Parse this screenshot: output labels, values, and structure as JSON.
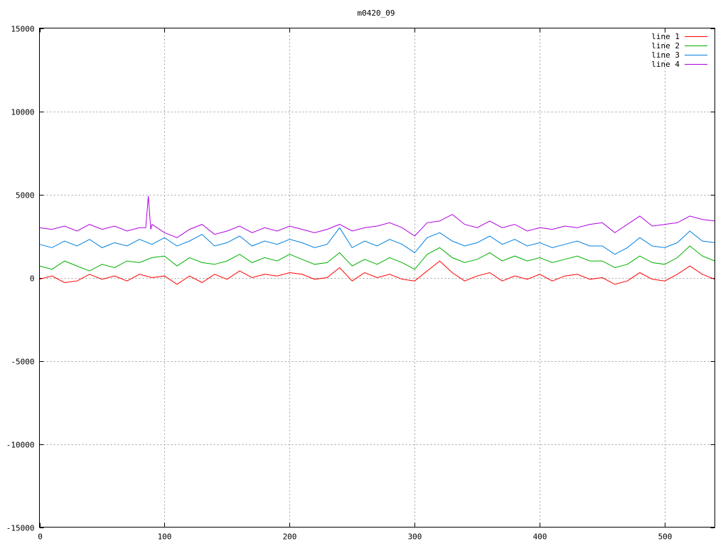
{
  "chart_data": {
    "type": "line",
    "title": "m0420_09",
    "xlim": [
      0,
      540
    ],
    "ylim": [
      -15000,
      15000
    ],
    "x_ticks": [
      0,
      100,
      200,
      300,
      400,
      500
    ],
    "y_ticks": [
      -15000,
      -10000,
      -5000,
      0,
      5000,
      10000,
      15000
    ],
    "grid": true,
    "legend_position": "top-right",
    "series": [
      {
        "name": "line 1",
        "color": "#ff0000",
        "x": [
          0,
          10,
          20,
          30,
          40,
          50,
          60,
          70,
          80,
          90,
          100,
          110,
          120,
          130,
          140,
          150,
          160,
          170,
          180,
          190,
          200,
          210,
          220,
          230,
          240,
          250,
          260,
          270,
          280,
          290,
          300,
          310,
          320,
          330,
          340,
          350,
          360,
          370,
          380,
          390,
          400,
          410,
          420,
          430,
          440,
          450,
          460,
          470,
          480,
          490,
          500,
          510,
          520,
          530,
          540
        ],
        "y": [
          -100,
          100,
          -300,
          -200,
          200,
          -100,
          100,
          -200,
          200,
          0,
          100,
          -400,
          100,
          -300,
          200,
          -100,
          400,
          0,
          200,
          100,
          300,
          200,
          -100,
          0,
          600,
          -200,
          300,
          0,
          200,
          -100,
          -200,
          400,
          1000,
          300,
          -200,
          100,
          300,
          -200,
          100,
          -100,
          200,
          -200,
          100,
          200,
          -100,
          0,
          -400,
          -200,
          300,
          -100,
          -200,
          200,
          700,
          200,
          -100
        ]
      },
      {
        "name": "line 2",
        "color": "#00b000",
        "x": [
          0,
          10,
          20,
          30,
          40,
          50,
          60,
          70,
          80,
          90,
          100,
          110,
          120,
          130,
          140,
          150,
          160,
          170,
          180,
          190,
          200,
          210,
          220,
          230,
          240,
          250,
          260,
          270,
          280,
          290,
          300,
          310,
          320,
          330,
          340,
          350,
          360,
          370,
          380,
          390,
          400,
          410,
          420,
          430,
          440,
          450,
          460,
          470,
          480,
          490,
          500,
          510,
          520,
          530,
          540
        ],
        "y": [
          700,
          500,
          1000,
          700,
          400,
          800,
          600,
          1000,
          900,
          1200,
          1300,
          700,
          1200,
          900,
          800,
          1000,
          1400,
          900,
          1200,
          1000,
          1400,
          1100,
          800,
          900,
          1500,
          700,
          1100,
          800,
          1200,
          900,
          500,
          1400,
          1800,
          1200,
          900,
          1100,
          1500,
          1000,
          1300,
          1000,
          1200,
          900,
          1100,
          1300,
          1000,
          1000,
          600,
          800,
          1300,
          900,
          800,
          1200,
          1900,
          1300,
          1000
        ]
      },
      {
        "name": "line 3",
        "color": "#0080e0",
        "x": [
          0,
          10,
          20,
          30,
          40,
          50,
          60,
          70,
          80,
          90,
          100,
          110,
          120,
          130,
          140,
          150,
          160,
          170,
          180,
          190,
          200,
          210,
          220,
          230,
          240,
          250,
          260,
          270,
          280,
          290,
          300,
          310,
          320,
          330,
          340,
          350,
          360,
          370,
          380,
          390,
          400,
          410,
          420,
          430,
          440,
          450,
          460,
          470,
          480,
          490,
          500,
          510,
          520,
          530,
          540
        ],
        "y": [
          2000,
          1800,
          2200,
          1900,
          2300,
          1800,
          2100,
          1900,
          2300,
          2000,
          2400,
          1900,
          2200,
          2600,
          1900,
          2100,
          2500,
          1900,
          2200,
          2000,
          2300,
          2100,
          1800,
          2000,
          3000,
          1800,
          2200,
          1900,
          2300,
          2000,
          1500,
          2400,
          2700,
          2200,
          1900,
          2100,
          2500,
          2000,
          2300,
          1900,
          2100,
          1800,
          2000,
          2200,
          1900,
          1900,
          1400,
          1800,
          2400,
          1900,
          1800,
          2100,
          2800,
          2200,
          2100
        ]
      },
      {
        "name": "line 4",
        "color": "#b000e0",
        "x": [
          0,
          10,
          20,
          30,
          40,
          50,
          60,
          70,
          80,
          85,
          87,
          89,
          90,
          100,
          110,
          120,
          130,
          140,
          150,
          160,
          170,
          180,
          190,
          200,
          210,
          220,
          230,
          240,
          250,
          260,
          270,
          280,
          290,
          300,
          310,
          320,
          330,
          340,
          350,
          360,
          370,
          380,
          390,
          400,
          410,
          420,
          430,
          440,
          450,
          460,
          470,
          480,
          490,
          500,
          510,
          520,
          530,
          540
        ],
        "y": [
          3000,
          2900,
          3100,
          2800,
          3200,
          2900,
          3100,
          2800,
          3000,
          3000,
          4900,
          2900,
          3200,
          2700,
          2400,
          2900,
          3200,
          2600,
          2800,
          3100,
          2700,
          3000,
          2800,
          3100,
          2900,
          2700,
          2900,
          3200,
          2800,
          3000,
          3100,
          3300,
          3000,
          2500,
          3300,
          3400,
          3800,
          3200,
          3000,
          3400,
          3000,
          3200,
          2800,
          3000,
          2900,
          3100,
          3000,
          3200,
          3300,
          2700,
          3200,
          3700,
          3100,
          3200,
          3300,
          3700,
          3500,
          3400
        ]
      }
    ]
  }
}
